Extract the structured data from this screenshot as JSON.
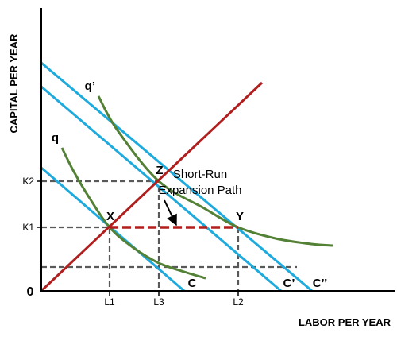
{
  "chart_data": {
    "type": "line",
    "title": "",
    "xlabel": "LABOR PER YEAR",
    "ylabel": "CAPITAL PER YEAR",
    "xlim": [
      0,
      445
    ],
    "ylim": [
      0,
      355
    ],
    "grid": false,
    "origin_label": "0",
    "x_ticks": [
      {
        "label": "L1",
        "value": 86
      },
      {
        "label": "L3",
        "value": 148
      },
      {
        "label": "L2",
        "value": 248
      }
    ],
    "y_ticks": [
      {
        "label": "K1",
        "value": 80
      },
      {
        "label": "K2",
        "value": 138
      }
    ],
    "series": [
      {
        "name": "C",
        "kind": "isocost",
        "color": "#1eaadc",
        "points": [
          [
            0,
            155
          ],
          [
            180,
            0
          ]
        ]
      },
      {
        "name": "C’",
        "kind": "isocost",
        "color": "#1eaadc",
        "points": [
          [
            0,
            257
          ],
          [
            302,
            0
          ]
        ]
      },
      {
        "name": "C’’",
        "kind": "isocost",
        "color": "#1eaadc",
        "points": [
          [
            0,
            287
          ],
          [
            341,
            0
          ]
        ]
      },
      {
        "name": "q",
        "kind": "isoquant",
        "color": "#538135",
        "points": [
          [
            26,
            180
          ],
          [
            41,
            150
          ],
          [
            60,
            118
          ],
          [
            86,
            80
          ],
          [
            115,
            55
          ],
          [
            148,
            35
          ],
          [
            180,
            24
          ],
          [
            207,
            16
          ]
        ]
      },
      {
        "name": "q’",
        "kind": "isoquant",
        "color": "#538135",
        "points": [
          [
            72,
            245
          ],
          [
            96,
            202
          ],
          [
            148,
            138
          ],
          [
            205,
            104
          ],
          [
            248,
            80
          ],
          [
            295,
            66
          ],
          [
            340,
            59
          ],
          [
            367,
            57
          ]
        ]
      },
      {
        "name": "",
        "kind": "expansion-path",
        "color": "#b01e1e",
        "points": [
          [
            0,
            0
          ],
          [
            278,
            262
          ]
        ]
      },
      {
        "name": "Short-Run Expansion Path",
        "kind": "short-run-path",
        "color": "#b01e1e",
        "dashed": true,
        "points": [
          [
            86,
            80
          ],
          [
            248,
            80
          ]
        ]
      }
    ],
    "guides": [
      {
        "points": [
          [
            0,
            138
          ],
          [
            148,
            138
          ],
          [
            148,
            0
          ]
        ]
      },
      {
        "points": [
          [
            0,
            80
          ],
          [
            86,
            80
          ],
          [
            86,
            0
          ]
        ]
      },
      {
        "points": [
          [
            248,
            80
          ],
          [
            248,
            0
          ]
        ]
      },
      {
        "points": [
          [
            0,
            30
          ],
          [
            322,
            30
          ]
        ]
      }
    ],
    "points": [
      {
        "label": "X",
        "x": 86,
        "y": 80
      },
      {
        "label": "Z",
        "x": 148,
        "y": 138
      },
      {
        "label": "Y",
        "x": 248,
        "y": 80
      }
    ],
    "annotations": [
      {
        "lines": [
          "Short-Run",
          "Expansion Path"
        ],
        "x": 200,
        "y": 142,
        "arrow_to": [
          170,
          83
        ]
      }
    ]
  }
}
